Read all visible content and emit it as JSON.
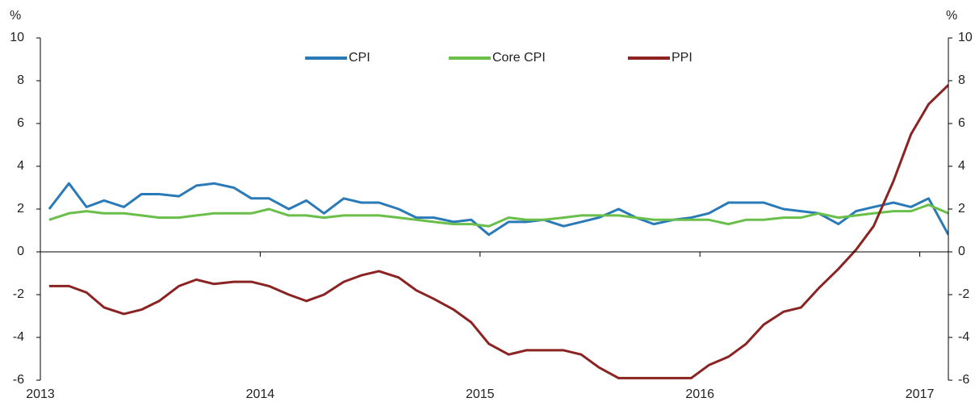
{
  "chart_data": {
    "type": "line",
    "y_label": "%",
    "y2_label": "%",
    "x": [
      2013.04,
      2013.13,
      2013.21,
      2013.29,
      2013.38,
      2013.46,
      2013.54,
      2013.63,
      2013.71,
      2013.79,
      2013.88,
      2013.96,
      2014.04,
      2014.13,
      2014.21,
      2014.29,
      2014.38,
      2014.46,
      2014.54,
      2014.63,
      2014.71,
      2014.79,
      2014.88,
      2014.96,
      2015.04,
      2015.13,
      2015.21,
      2015.29,
      2015.38,
      2015.46,
      2015.54,
      2015.63,
      2015.71,
      2015.79,
      2015.88,
      2015.96,
      2016.04,
      2016.13,
      2016.21,
      2016.29,
      2016.38,
      2016.46,
      2016.54,
      2016.63,
      2016.71,
      2016.79,
      2016.88,
      2016.96,
      2017.04,
      2017.13
    ],
    "series": [
      {
        "name": "CPI",
        "color": "#2a7ab8",
        "values": [
          2.0,
          3.2,
          2.1,
          2.4,
          2.1,
          2.7,
          2.7,
          2.6,
          3.1,
          3.2,
          3.0,
          2.5,
          2.5,
          2.0,
          2.4,
          1.8,
          2.5,
          2.3,
          2.3,
          2.0,
          1.6,
          1.6,
          1.4,
          1.5,
          0.8,
          1.4,
          1.4,
          1.5,
          1.2,
          1.4,
          1.6,
          2.0,
          1.6,
          1.3,
          1.5,
          1.6,
          1.8,
          2.3,
          2.3,
          2.3,
          2.0,
          1.9,
          1.8,
          1.3,
          1.9,
          2.1,
          2.3,
          2.1,
          2.5,
          0.8
        ]
      },
      {
        "name": "Core CPI",
        "color": "#6abf4b",
        "values": [
          1.5,
          1.8,
          1.9,
          1.8,
          1.8,
          1.7,
          1.6,
          1.6,
          1.7,
          1.8,
          1.8,
          1.8,
          2.0,
          1.7,
          1.7,
          1.6,
          1.7,
          1.7,
          1.7,
          1.6,
          1.5,
          1.4,
          1.3,
          1.3,
          1.2,
          1.6,
          1.5,
          1.5,
          1.6,
          1.7,
          1.7,
          1.7,
          1.6,
          1.5,
          1.5,
          1.5,
          1.5,
          1.3,
          1.5,
          1.5,
          1.6,
          1.6,
          1.8,
          1.6,
          1.7,
          1.8,
          1.9,
          1.9,
          2.2,
          1.8
        ]
      },
      {
        "name": "PPI",
        "color": "#8b2323",
        "values": [
          -1.6,
          -1.6,
          -1.9,
          -2.6,
          -2.9,
          -2.7,
          -2.3,
          -1.6,
          -1.3,
          -1.5,
          -1.4,
          -1.4,
          -1.6,
          -2.0,
          -2.3,
          -2.0,
          -1.4,
          -1.1,
          -0.9,
          -1.2,
          -1.8,
          -2.2,
          -2.7,
          -3.3,
          -4.3,
          -4.8,
          -4.6,
          -4.6,
          -4.6,
          -4.8,
          -5.4,
          -5.9,
          -5.9,
          -5.9,
          -5.9,
          -5.9,
          -5.3,
          -4.9,
          -4.3,
          -3.4,
          -2.8,
          -2.6,
          -1.7,
          -0.8,
          0.1,
          1.2,
          3.3,
          5.5,
          6.9,
          7.8
        ]
      }
    ],
    "xlim": [
      2013,
      2017.13
    ],
    "xticks": [
      2013,
      2014,
      2015,
      2016,
      2017
    ],
    "ylim": [
      -6,
      10
    ],
    "yticks": [
      -6,
      -4,
      -2,
      0,
      2,
      4,
      6,
      8,
      10
    ],
    "y2lim": [
      -6,
      10
    ],
    "y2ticks": [
      -6,
      -4,
      -2,
      0,
      2,
      4,
      6,
      8,
      10
    ],
    "legend": "top"
  }
}
